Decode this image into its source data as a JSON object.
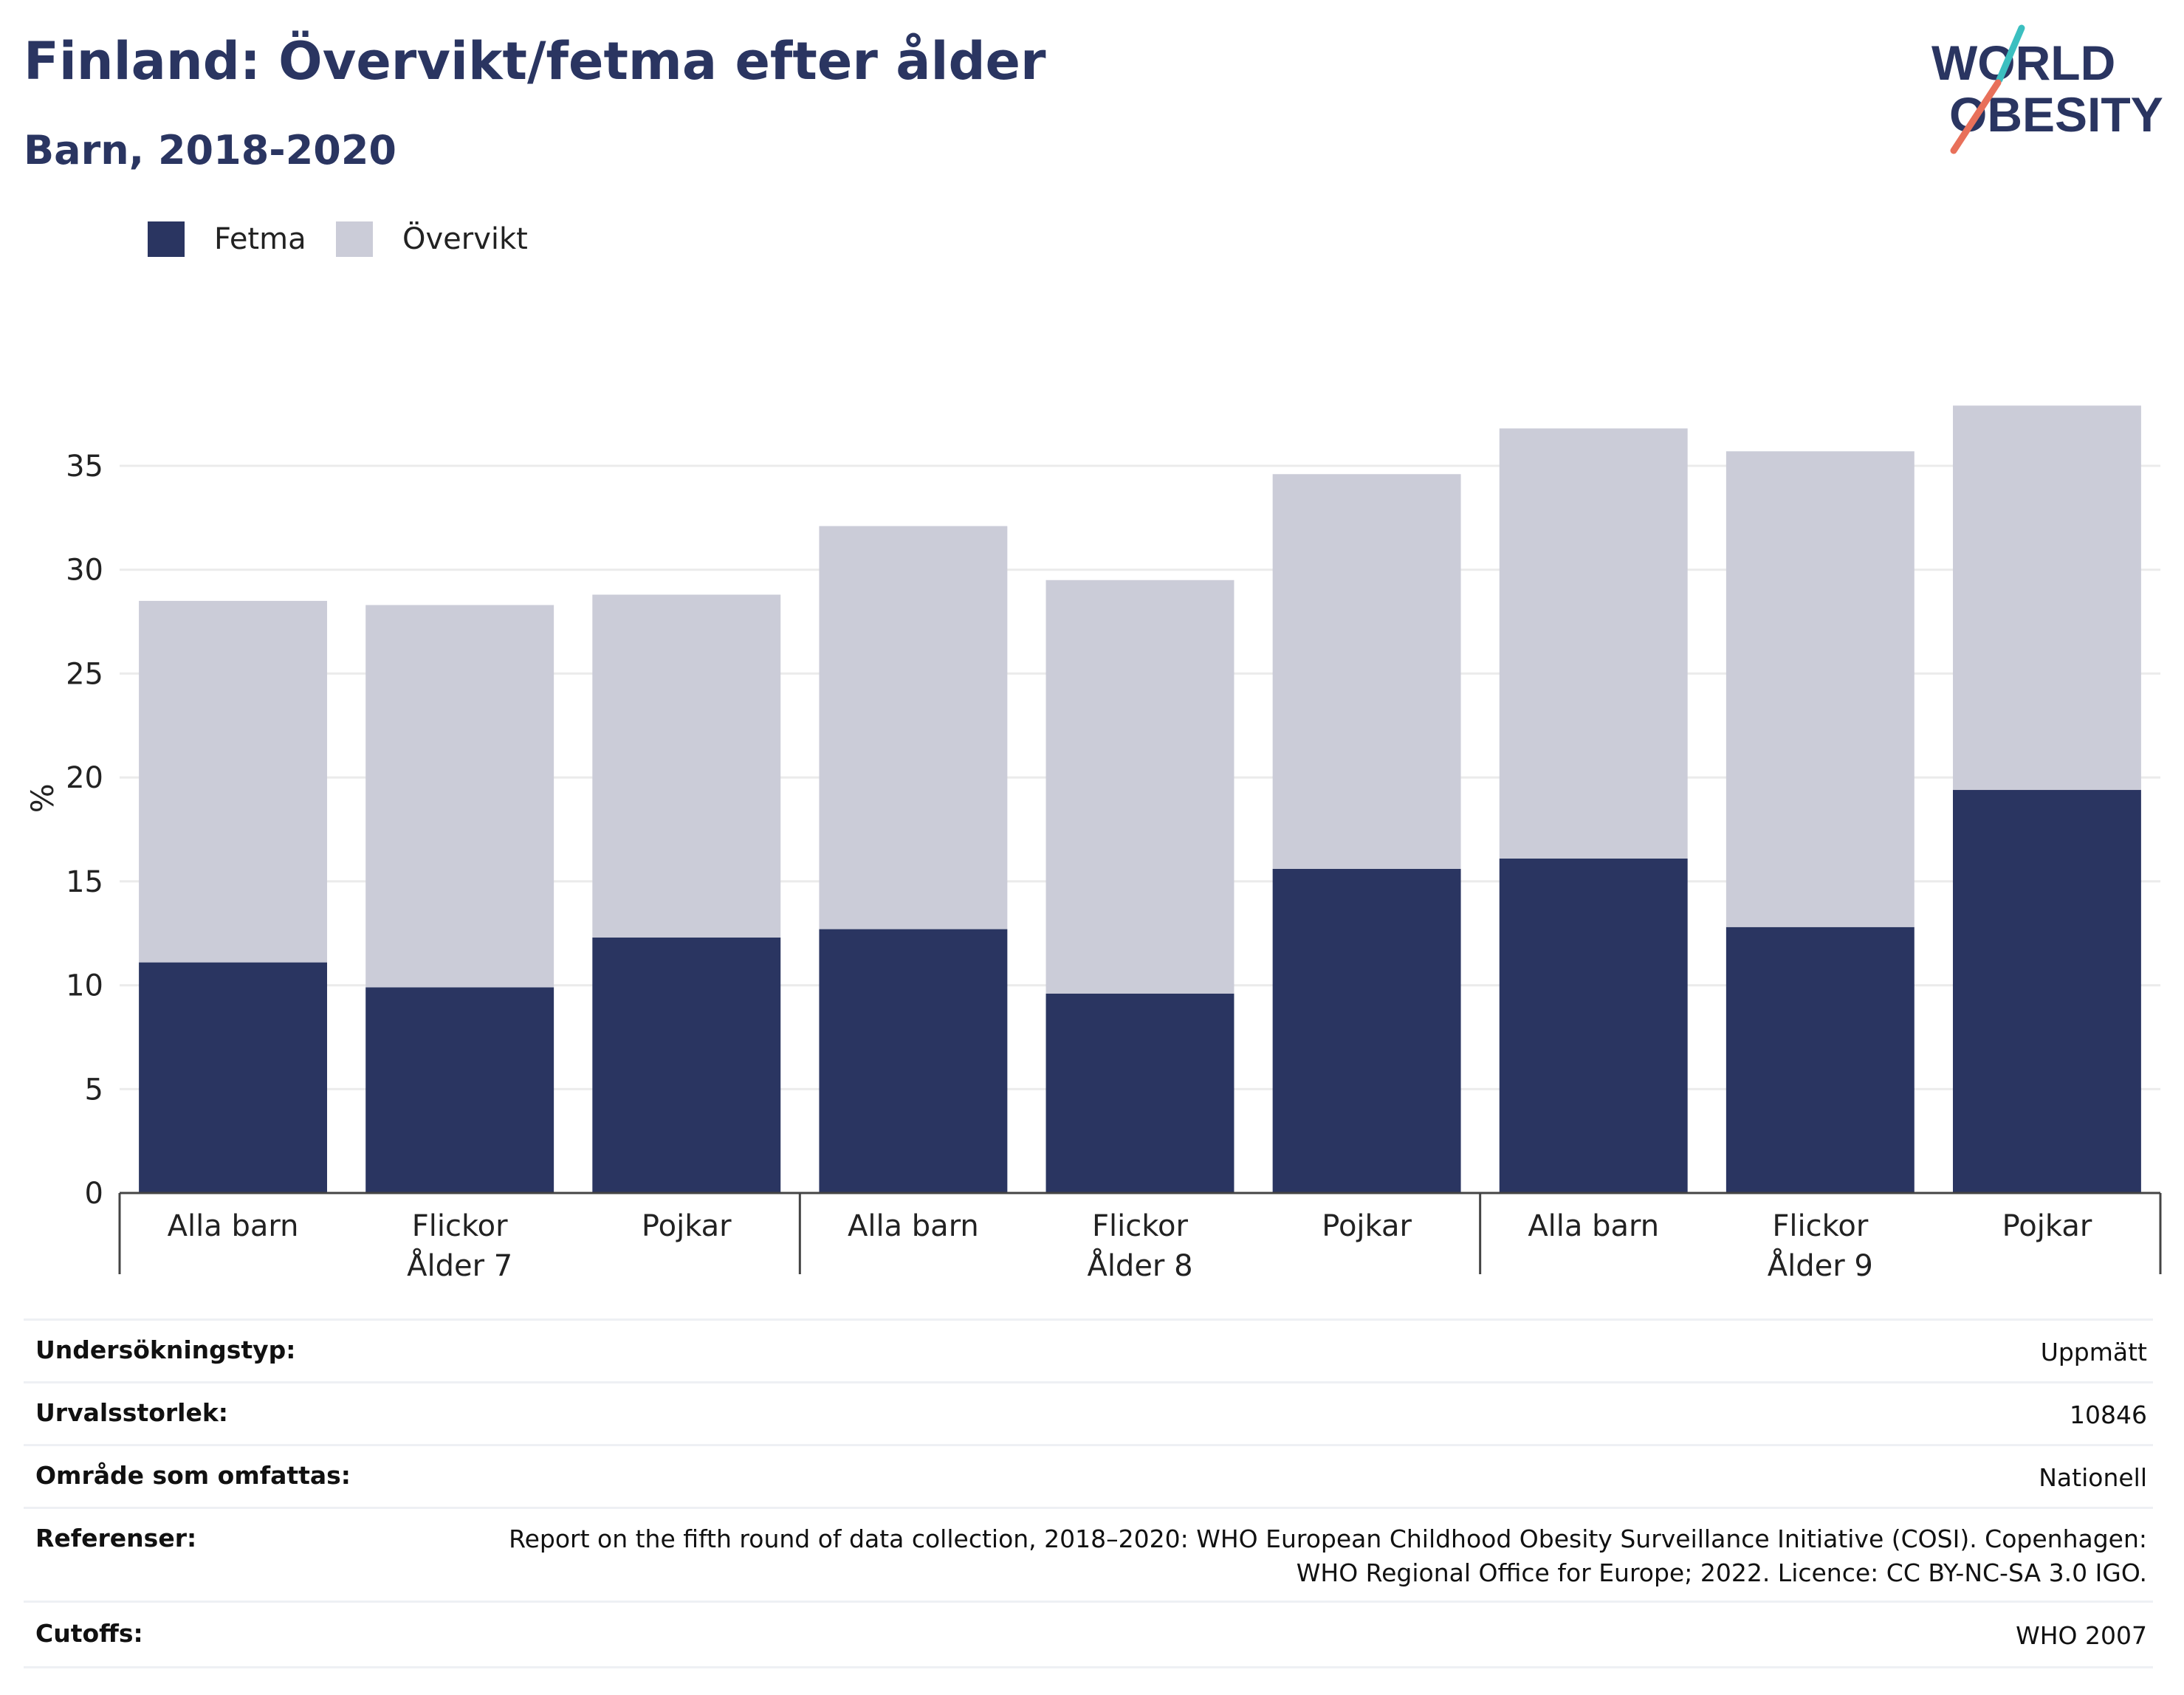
{
  "title": "Finland: Övervikt/fetma efter ålder",
  "subtitle": "Barn, 2018-2020",
  "logo": {
    "line1": "WORLD",
    "line2": "OBESITY",
    "colors": {
      "text": "#2a3561",
      "teal": "#3bbfc0",
      "coral": "#e8705a"
    }
  },
  "legend": [
    {
      "label": "Fetma",
      "color": "#2a3561"
    },
    {
      "label": "Övervikt",
      "color": "#cbccd8"
    }
  ],
  "chart_data": {
    "type": "bar",
    "stacked": true,
    "categories": [
      "Alla barn",
      "Flickor",
      "Pojkar",
      "Alla barn",
      "Flickor",
      "Pojkar",
      "Alla barn",
      "Flickor",
      "Pojkar"
    ],
    "groups": [
      "Ålder 7",
      "Ålder 8",
      "Ålder 9"
    ],
    "series": [
      {
        "name": "Fetma",
        "color": "#2a3561",
        "values": [
          11.1,
          9.9,
          12.3,
          12.7,
          9.6,
          15.6,
          16.1,
          12.8,
          19.4
        ]
      },
      {
        "name": "Övervikt",
        "color": "#cbccd8",
        "values": [
          17.4,
          18.4,
          16.5,
          19.4,
          19.9,
          19.0,
          20.7,
          22.9,
          18.5
        ]
      }
    ],
    "ylabel": "%",
    "yticks": [
      0,
      5,
      10,
      15,
      20,
      25,
      30,
      35
    ],
    "ylim": [
      0,
      38
    ],
    "grid": true,
    "legend_position": "top-left"
  },
  "info": {
    "survey_type": {
      "label": "Undersökningstyp:",
      "value": "Uppmätt"
    },
    "sample_size": {
      "label": "Urvalsstorlek:",
      "value": "10846"
    },
    "area": {
      "label": "Område som omfattas:",
      "value": "Nationell"
    },
    "references": {
      "label": "Referenser:",
      "value": "Report on the fifth round of data collection, 2018–2020: WHO European Childhood Obesity Surveillance Initiative (COSI). Copenhagen: WHO Regional Office for Europe; 2022. Licence: CC BY-NC-SA 3.0 IGO."
    },
    "cutoffs": {
      "label": "Cutoffs:",
      "value": "WHO 2007"
    }
  }
}
